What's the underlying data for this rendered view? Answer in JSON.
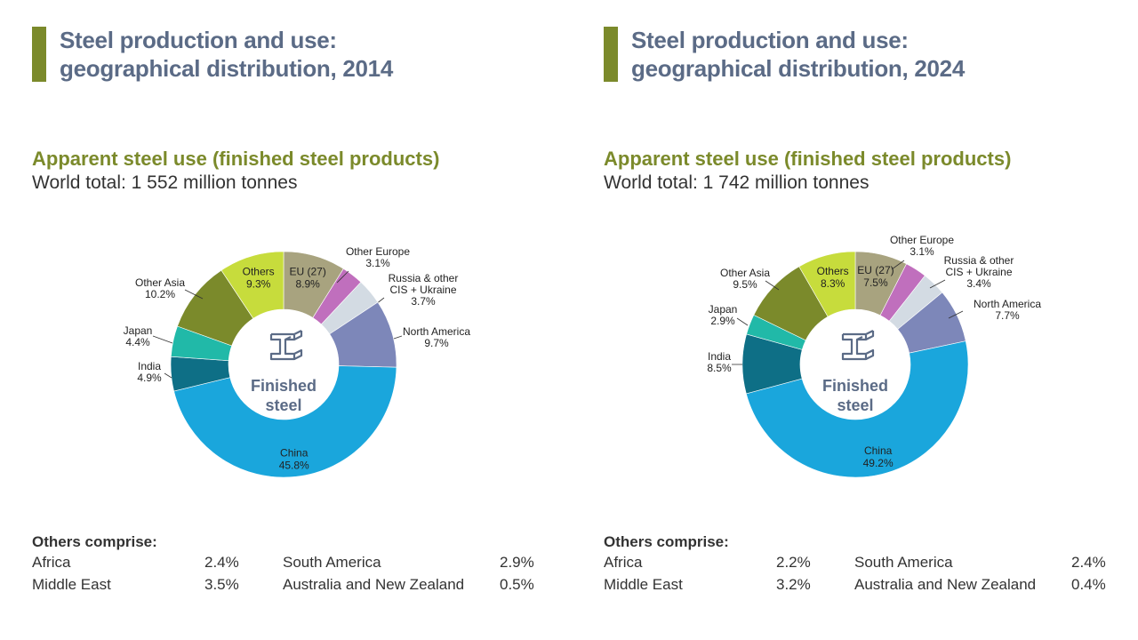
{
  "panels": [
    {
      "title_line1": "Steel production and use:",
      "title_line2": "geographical distribution, 2014",
      "subtitle": "Apparent steel use (finished steel products)",
      "world_total": "World total: 1 552 million tonnes",
      "center_label_1": "Finished",
      "center_label_2": "steel",
      "others_heading": "Others comprise:",
      "others_items": [
        {
          "name": "Africa",
          "value": "2.4%"
        },
        {
          "name": "Middle East",
          "value": "3.5%"
        },
        {
          "name": "South America",
          "value": "2.9%"
        },
        {
          "name": "Australia and New Zealand",
          "value": "0.5%"
        }
      ]
    },
    {
      "title_line1": "Steel production and use:",
      "title_line2": "geographical distribution, 2024",
      "subtitle": "Apparent steel use (finished steel products)",
      "world_total": "World total: 1 742 million tonnes",
      "center_label_1": "Finished",
      "center_label_2": "steel",
      "others_heading": "Others comprise:",
      "others_items": [
        {
          "name": "Africa",
          "value": "2.2%"
        },
        {
          "name": "Middle East",
          "value": "3.2%"
        },
        {
          "name": "South America",
          "value": "2.4%"
        },
        {
          "name": "Australia and New Zealand",
          "value": "0.4%"
        }
      ]
    }
  ],
  "colors": {
    "title": "#5b6b86",
    "accent_green": "#7b8a2b",
    "center_text": "#5b6b86"
  },
  "chart_data": [
    {
      "type": "pie",
      "title": "Apparent steel use (finished steel products)",
      "year": "2014",
      "slices": [
        {
          "name": "EU (27)",
          "value": 8.9,
          "label_value": "8.9%",
          "color": "#a8a37f"
        },
        {
          "name": "Other Europe",
          "value": 3.1,
          "label_value": "3.1%",
          "color": "#c06fbd"
        },
        {
          "name": "Russia & other CIS + Ukraine",
          "value": 3.7,
          "label_value": "3.7%",
          "color": "#d3dbe3"
        },
        {
          "name": "North America",
          "value": 9.7,
          "label_value": "9.7%",
          "color": "#7d87b9"
        },
        {
          "name": "China",
          "value": 45.8,
          "label_value": "45.8%",
          "color": "#1aa6dc"
        },
        {
          "name": "India",
          "value": 4.9,
          "label_value": "4.9%",
          "color": "#0e6f86"
        },
        {
          "name": "Japan",
          "value": 4.4,
          "label_value": "4.4%",
          "color": "#21b9a8"
        },
        {
          "name": "Other Asia",
          "value": 10.2,
          "label_value": "10.2%",
          "color": "#7b8a2b"
        },
        {
          "name": "Others",
          "value": 9.3,
          "label_value": "9.3%",
          "color": "#c7dc3c"
        }
      ]
    },
    {
      "type": "pie",
      "title": "Apparent steel use (finished steel products)",
      "year": "2024",
      "slices": [
        {
          "name": "EU (27)",
          "value": 7.5,
          "label_value": "7.5%",
          "color": "#a8a37f"
        },
        {
          "name": "Other Europe",
          "value": 3.1,
          "label_value": "3.1%",
          "color": "#c06fbd"
        },
        {
          "name": "Russia & other CIS + Ukraine",
          "value": 3.4,
          "label_value": "3.4%",
          "color": "#d3dbe3"
        },
        {
          "name": "North America",
          "value": 7.7,
          "label_value": "7.7%",
          "color": "#7d87b9"
        },
        {
          "name": "China",
          "value": 49.2,
          "label_value": "49.2%",
          "color": "#1aa6dc"
        },
        {
          "name": "India",
          "value": 8.5,
          "label_value": "8.5%",
          "color": "#0e6f86"
        },
        {
          "name": "Japan",
          "value": 2.9,
          "label_value": "2.9%",
          "color": "#21b9a8"
        },
        {
          "name": "Other Asia",
          "value": 9.5,
          "label_value": "9.5%",
          "color": "#7b8a2b"
        },
        {
          "name": "Others",
          "value": 8.3,
          "label_value": "8.3%",
          "color": "#c7dc3c"
        }
      ]
    }
  ]
}
